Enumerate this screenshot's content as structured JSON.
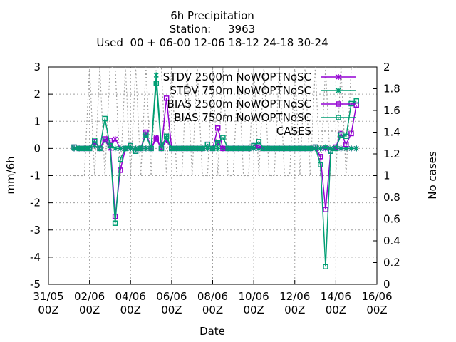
{
  "chart_data": {
    "type": "line",
    "title": "6h Precipitation",
    "subtitle": [
      "Station:     3963",
      "Used  00 + 06-00 12-06 18-12 24-18 30-24"
    ],
    "xlabel": "Date",
    "ylabel": "mm/6h",
    "y2label": "No cases",
    "x": [
      "01/06 06Z",
      "01/06 12Z",
      "01/06 18Z",
      "02/06 00Z",
      "02/06 06Z",
      "02/06 12Z",
      "02/06 18Z",
      "03/06 00Z",
      "03/06 06Z",
      "03/06 12Z",
      "03/06 18Z",
      "04/06 00Z",
      "04/06 06Z",
      "04/06 12Z",
      "04/06 18Z",
      "05/06 00Z",
      "05/06 06Z",
      "05/06 12Z",
      "05/06 18Z",
      "06/06 00Z",
      "06/06 06Z",
      "06/06 12Z",
      "06/06 18Z",
      "07/06 00Z",
      "07/06 06Z",
      "07/06 12Z",
      "07/06 18Z",
      "08/06 00Z",
      "08/06 06Z",
      "08/06 12Z",
      "08/06 18Z",
      "09/06 00Z",
      "09/06 06Z",
      "09/06 12Z",
      "09/06 18Z",
      "10/06 00Z",
      "10/06 06Z",
      "10/06 12Z",
      "10/06 18Z",
      "11/06 00Z",
      "11/06 06Z",
      "11/06 12Z",
      "11/06 18Z",
      "12/06 00Z",
      "12/06 06Z",
      "12/06 12Z",
      "12/06 18Z",
      "13/06 00Z",
      "13/06 06Z",
      "13/06 12Z",
      "13/06 18Z",
      "14/06 00Z",
      "14/06 06Z",
      "14/06 12Z",
      "14/06 18Z",
      "15/06 00Z"
    ],
    "xlim": [
      "31/05 00Z",
      "16/06 00Z"
    ],
    "xticks": [
      "31/05 00Z",
      "02/06 00Z",
      "04/06 00Z",
      "06/06 00Z",
      "08/06 00Z",
      "10/06 00Z",
      "12/06 00Z",
      "14/06 00Z",
      "16/06 00Z"
    ],
    "ylim": [
      -5,
      3
    ],
    "yticks": [
      -5,
      -4,
      -3,
      -2,
      -1,
      0,
      1,
      2,
      3
    ],
    "y2lim": [
      0,
      2
    ],
    "y2ticks": [
      0,
      0.2,
      0.4,
      0.6,
      0.8,
      1,
      1.2,
      1.4,
      1.6,
      1.8,
      2
    ],
    "grid": true,
    "legend": "top-right",
    "series": [
      {
        "name": "STDV 2500m NoWOPTNoSC",
        "color": "#9400d3",
        "marker": "x",
        "values": [
          0,
          0,
          0,
          0,
          0.1,
          0,
          0.3,
          0,
          0.35,
          0,
          0,
          0,
          0,
          0,
          0,
          0,
          0.4,
          0,
          0.3,
          0,
          0,
          0,
          0,
          0,
          0,
          0,
          0,
          0,
          0.2,
          0,
          0,
          0,
          0,
          0,
          0,
          0,
          0,
          0,
          0,
          0,
          0,
          0,
          0,
          0,
          0,
          0,
          0,
          0,
          0,
          0,
          0,
          0,
          0,
          0,
          0,
          0
        ]
      },
      {
        "name": "STDV 750m NoWOPTNoSC",
        "color": "#009e73",
        "marker": "x",
        "values": [
          0,
          0,
          0,
          0,
          0.1,
          0,
          0.3,
          0.1,
          0,
          0,
          0,
          0,
          0,
          0,
          0,
          0,
          2.7,
          0.1,
          0.4,
          0,
          0,
          0,
          0,
          0,
          0,
          0,
          0,
          0,
          0,
          0,
          0,
          0,
          0,
          0,
          0,
          0,
          0,
          0,
          0,
          0,
          0,
          0,
          0,
          0,
          0,
          0,
          0,
          0,
          0,
          0.05,
          0,
          0,
          0,
          0,
          0,
          0
        ]
      },
      {
        "name": "BIAS 2500m NoWOPTNoSC",
        "color": "#9400d3",
        "marker": "square",
        "values": [
          0.05,
          0,
          0,
          0,
          0.25,
          0,
          0.35,
          0.3,
          -2.5,
          -0.8,
          0,
          0.1,
          -0.1,
          0,
          0.6,
          0,
          0.35,
          0,
          1.85,
          0,
          0,
          0,
          0,
          0,
          0,
          0,
          0.15,
          0,
          0.75,
          0,
          0,
          0,
          0,
          0,
          0,
          0.1,
          0.1,
          0,
          0,
          0,
          0,
          0,
          0,
          0,
          0,
          0,
          0,
          0.05,
          -0.3,
          -2.25,
          -0.1,
          0.05,
          0.55,
          0.15,
          0.55,
          1.6
        ]
      },
      {
        "name": "BIAS 750m NoWOPTNoSC",
        "color": "#009e73",
        "marker": "square",
        "values": [
          0.05,
          0,
          0,
          0,
          0.3,
          0,
          1.1,
          0.1,
          -2.75,
          -0.4,
          0,
          0.1,
          -0.1,
          0,
          0.5,
          0,
          2.4,
          0,
          0.45,
          0,
          0,
          0,
          0,
          0,
          0,
          0,
          0.15,
          0,
          0.2,
          0.4,
          0,
          0,
          0,
          0,
          0,
          0.1,
          0.25,
          0,
          0,
          0,
          0,
          0,
          0,
          0,
          0,
          0,
          0,
          0.05,
          -0.6,
          -4.35,
          -0.1,
          0,
          0.5,
          0.45,
          1.65,
          1.75
        ]
      },
      {
        "name": "CASES",
        "color": "#a0a0a0",
        "axis": "y2",
        "dash": true,
        "values": [
          1,
          1,
          1,
          2,
          1,
          2,
          1,
          2,
          2,
          1,
          2,
          1,
          2,
          1,
          2,
          1,
          2,
          2,
          1,
          2,
          1,
          1,
          2,
          1,
          2,
          1,
          1,
          2,
          1,
          2,
          1,
          1,
          2,
          1,
          1,
          2,
          1,
          2,
          1,
          1,
          2,
          1,
          1,
          2,
          1,
          2,
          1,
          2,
          1,
          2,
          1,
          1,
          2,
          1,
          2,
          2
        ]
      }
    ]
  }
}
